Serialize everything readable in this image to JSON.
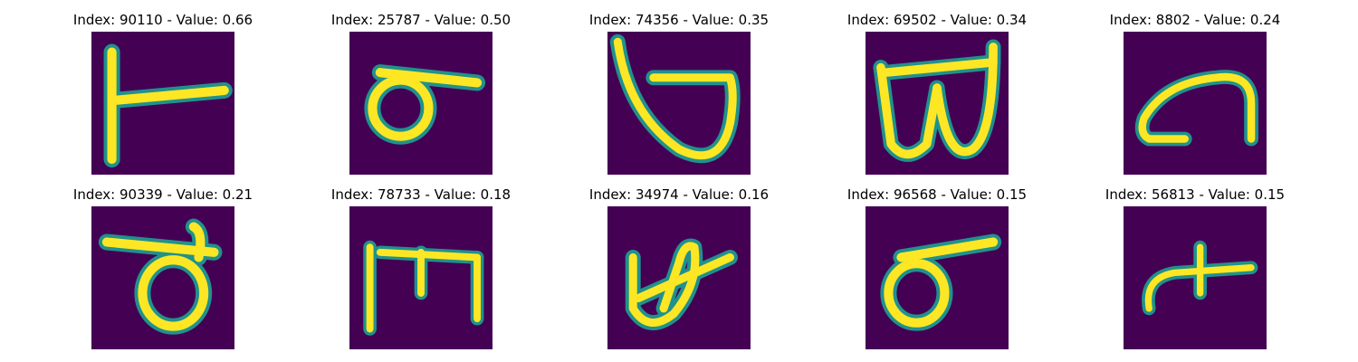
{
  "figure": {
    "colors": {
      "background": "#440154",
      "stroke_edge": "#21918c",
      "stroke_core": "#fde725",
      "stroke_mid": "#5ec962"
    },
    "panels": [
      {
        "title": "Index: 90110 - Value: 0.66",
        "glyph": "vertical-bar-with-horizontal-arm"
      },
      {
        "title": "Index: 25787 - Value: 0.50",
        "glyph": "loop-with-top-bar"
      },
      {
        "title": "Index: 74356 - Value: 0.35",
        "glyph": "large-loop"
      },
      {
        "title": "Index: 69502 - Value: 0.34",
        "glyph": "double-loop-w"
      },
      {
        "title": "Index: 8802 - Value: 0.24",
        "glyph": "hook-curve"
      },
      {
        "title": "Index: 90339 - Value: 0.21",
        "glyph": "loop-with-bar-and-hook"
      },
      {
        "title": "Index: 78733 - Value: 0.18",
        "glyph": "m-shape"
      },
      {
        "title": "Index: 34974 - Value: 0.16",
        "glyph": "crossed-loop"
      },
      {
        "title": "Index: 96568 - Value: 0.15",
        "glyph": "loop-with-top-bar"
      },
      {
        "title": "Index: 56813 - Value: 0.15",
        "glyph": "small-hook-with-stem"
      }
    ]
  }
}
